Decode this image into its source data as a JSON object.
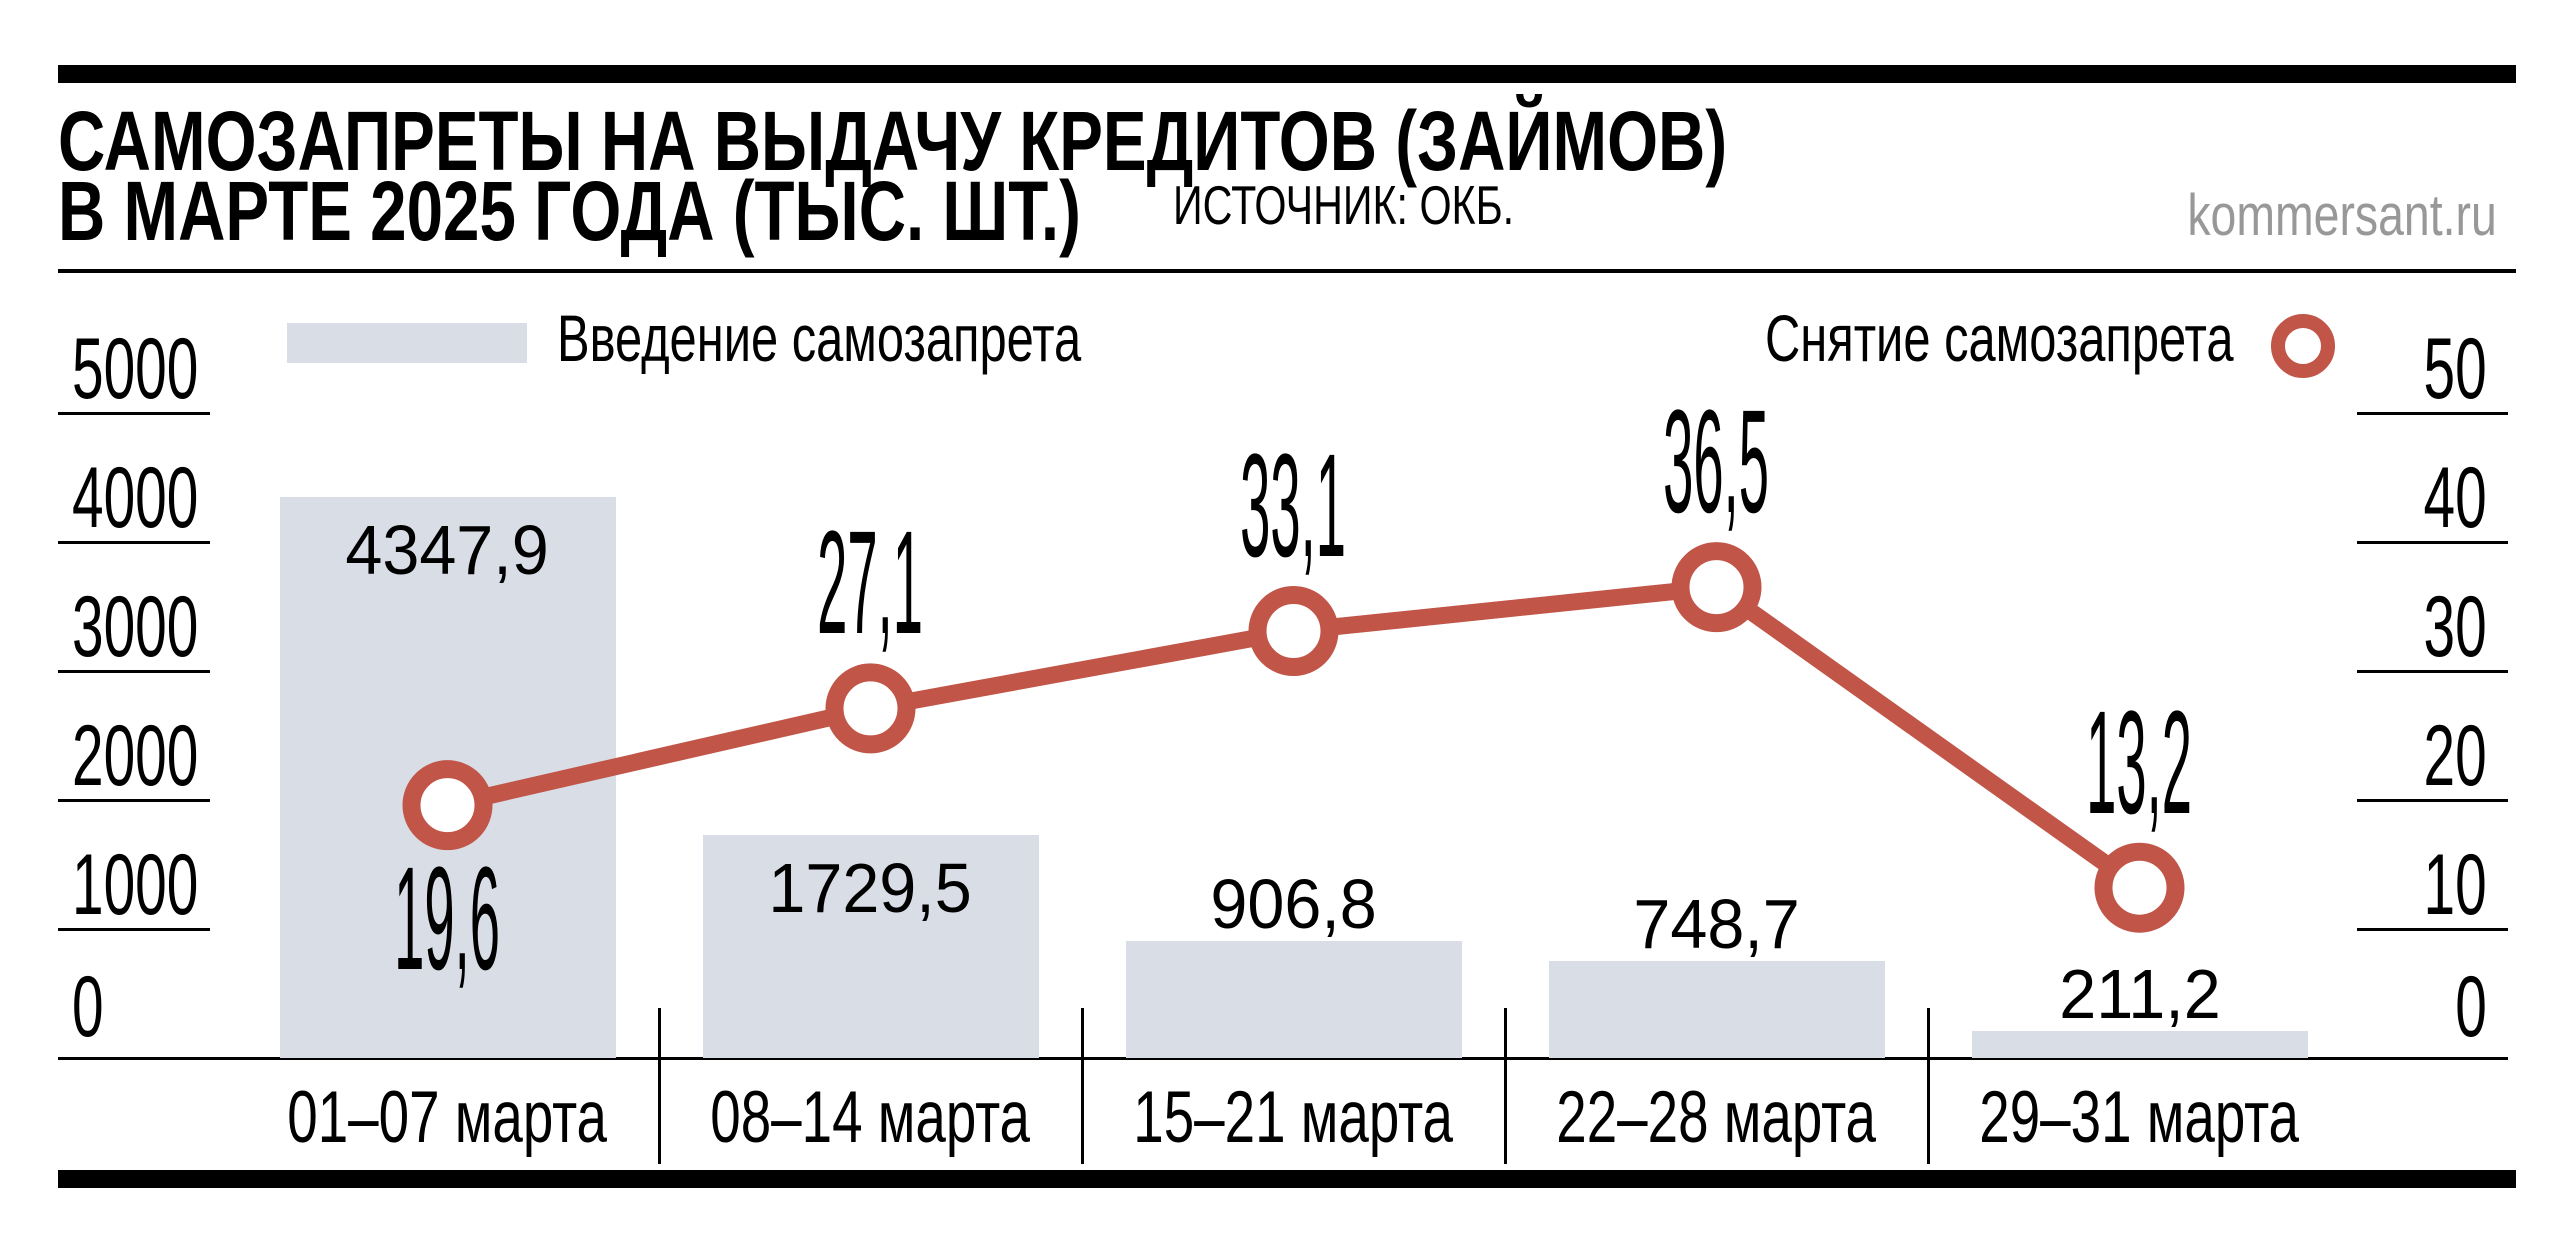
{
  "header": {
    "title_line1": "САМОЗАПРЕТЫ НА ВЫДАЧУ КРЕДИТОВ (ЗАЙМОВ)",
    "title_line2": "В МАРТЕ 2025 ГОДА (ТЫС. ШТ.)",
    "source": "ИСТОЧНИК: ОКБ.",
    "site": "kommersant.ru"
  },
  "legend": {
    "bars_label": "Введение самозапрета",
    "line_label": "Снятие самозапрета"
  },
  "colors": {
    "bar_fill": "#D8DDE6",
    "line_red": "#C15547",
    "text_black": "#000000",
    "site_gray": "#989898"
  },
  "chart_data": {
    "type": "bar",
    "subtype": "bar-and-line-dual-axis",
    "title": "САМОЗАПРЕТЫ НА ВЫДАЧУ КРЕДИТОВ (ЗАЙМОВ) В МАРТЕ 2025 ГОДА (ТЫС. ШТ.)",
    "categories": [
      "01–07 марта",
      "08–14 марта",
      "15–21 марта",
      "22–28 марта",
      "29–31 марта"
    ],
    "series": [
      {
        "name": "Введение самозапрета",
        "type": "bar",
        "axis": "left",
        "values": [
          4347.9,
          1729.5,
          906.8,
          748.7,
          211.2
        ],
        "labels": [
          "4347,9",
          "1729,5",
          "906,8",
          "748,7",
          "211,2"
        ],
        "label_placement": [
          "inside",
          "inside",
          "above",
          "above",
          "above"
        ]
      },
      {
        "name": "Снятие самозапрета",
        "type": "line",
        "axis": "right",
        "values": [
          19.6,
          27.1,
          33.1,
          36.5,
          13.2
        ],
        "labels": [
          "19,6",
          "27,1",
          "33,1",
          "36,5",
          "13,2"
        ],
        "label_placement": [
          "below",
          "above",
          "above",
          "above",
          "above"
        ]
      }
    ],
    "left_axis": {
      "ticks": [
        "0",
        "1000",
        "2000",
        "3000",
        "4000",
        "5000"
      ],
      "min": 0,
      "max": 5000
    },
    "right_axis": {
      "ticks": [
        "0",
        "10",
        "20",
        "30",
        "40",
        "50"
      ],
      "min": 0,
      "max": 50
    },
    "grid": "tick-underlines-only",
    "legend_position": "top"
  }
}
